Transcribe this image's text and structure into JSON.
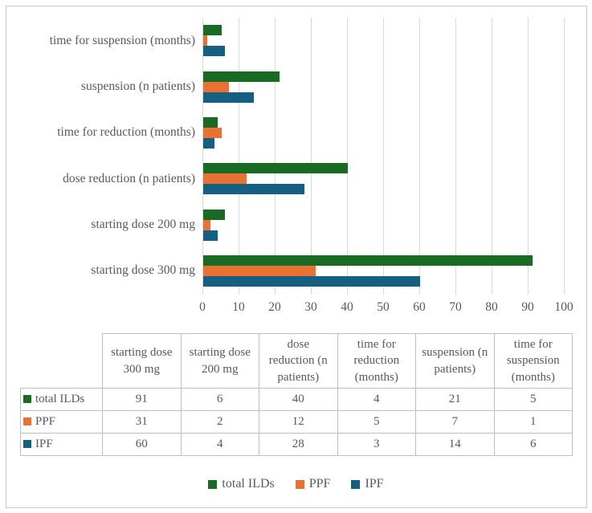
{
  "chart_data": {
    "type": "bar",
    "orientation": "horizontal",
    "title": "",
    "categories_top_to_bottom": [
      "time for suspension (months)",
      "suspension (n patients)",
      "time for reduction (months)",
      "dose reduction (n patients)",
      "starting dose 200 mg",
      "starting dose 300 mg"
    ],
    "series": [
      {
        "name": "total ILDs",
        "color": "#196B24",
        "values_by_category": [
          5,
          21,
          4,
          40,
          6,
          91
        ]
      },
      {
        "name": "PPF",
        "color": "#E97132",
        "values_by_category": [
          1,
          7,
          5,
          12,
          2,
          31
        ]
      },
      {
        "name": "IPF",
        "color": "#156082",
        "values_by_category": [
          6,
          14,
          3,
          28,
          4,
          60
        ]
      }
    ],
    "xlim": [
      0,
      100
    ],
    "xticks": [
      0,
      10,
      20,
      30,
      40,
      50,
      60,
      70,
      80,
      90,
      100
    ],
    "grid": "vertical-only",
    "legend_position": "bottom"
  },
  "table": {
    "columns": [
      "starting dose 300 mg",
      "starting dose 200 mg",
      "dose reduction (n patients)",
      "time for reduction (months)",
      "suspension (n patients)",
      "time for suspension (months)"
    ],
    "rows": [
      {
        "label": "total ILDs",
        "color": "#196B24",
        "values": [
          91,
          6,
          40,
          4,
          21,
          5
        ]
      },
      {
        "label": "PPF",
        "color": "#E97132",
        "values": [
          31,
          2,
          12,
          5,
          7,
          1
        ]
      },
      {
        "label": "IPF",
        "color": "#156082",
        "values": [
          60,
          4,
          28,
          3,
          14,
          6
        ]
      }
    ]
  },
  "legend": {
    "items": [
      {
        "label": "total ILDs",
        "color": "#196B24"
      },
      {
        "label": "PPF",
        "color": "#E97132"
      },
      {
        "label": "IPF",
        "color": "#156082"
      }
    ]
  },
  "colors": {
    "gridline": "#D9D9D9",
    "table_border": "#BFBFBF",
    "frame_border": "#C9C9C9",
    "text": "#595959"
  }
}
